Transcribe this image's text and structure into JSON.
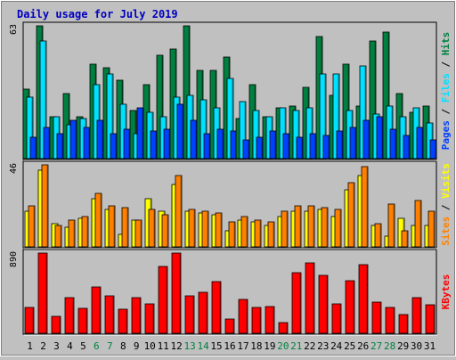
{
  "colors": {
    "background": "#c0c0c0",
    "title": "#0000c0",
    "panel_border": "#000000",
    "hits": "#008040",
    "files": "#00e0ff",
    "pages": "#0040ff",
    "visits": "#ffff00",
    "sites": "#ff8000",
    "kbytes": "#ff0000",
    "weekend_label": "#008040"
  },
  "chart_data": {
    "type": "bar",
    "title": "Daily usage for July 2019",
    "categories": [
      "1",
      "2",
      "3",
      "4",
      "5",
      "6",
      "7",
      "8",
      "9",
      "10",
      "11",
      "12",
      "13",
      "14",
      "15",
      "16",
      "17",
      "18",
      "19",
      "20",
      "21",
      "22",
      "23",
      "24",
      "25",
      "26",
      "27",
      "28",
      "29",
      "30",
      "31"
    ],
    "weekend_days": [
      "6",
      "7",
      "13",
      "14",
      "20",
      "21",
      "27",
      "28"
    ],
    "panels": [
      {
        "id": "hits-files-pages",
        "max_label": "63",
        "ylim": [
          0,
          63
        ],
        "side_label": [
          "Pages",
          "Files",
          "Hits"
        ],
        "series": [
          {
            "name": "Hits",
            "color_key": "hits",
            "values": [
              33,
              63,
              20,
              31,
              20,
              45,
              43,
              37,
              23,
              35,
              49,
              52,
              63,
              42,
              42,
              48,
              19,
              35,
              20,
              24,
              25,
              34,
              58,
              30,
              45,
              25,
              56,
              60,
              31,
              22,
              25
            ]
          },
          {
            "name": "Files",
            "color_key": "files",
            "values": [
              29,
              56,
              20,
              16,
              19,
              35,
              40,
              26,
              12,
              22,
              20,
              29,
              30,
              28,
              24,
              38,
              27,
              23,
              20,
              24,
              23,
              24,
              40,
              40,
              23,
              44,
              21,
              25,
              20,
              24,
              17
            ]
          },
          {
            "name": "Pages",
            "color_key": "pages",
            "values": [
              10,
              15,
              12,
              18,
              15,
              18,
              12,
              14,
              24,
              13,
              14,
              26,
              18,
              12,
              14,
              13,
              9,
              10,
              13,
              12,
              10,
              12,
              11,
              13,
              15,
              18,
              20,
              14,
              11,
              15,
              9
            ]
          }
        ]
      },
      {
        "id": "visits-sites",
        "max_label": "46",
        "ylim": [
          0,
          46
        ],
        "side_label": [
          "Sites",
          "Visits"
        ],
        "series": [
          {
            "name": "Visits",
            "color_key": "visits",
            "values": [
              20,
              43,
              13,
              11,
              16,
              27,
              21,
              7,
              15,
              27,
              20,
              35,
              20,
              19,
              18,
              9,
              15,
              14,
              12,
              17,
              20,
              20,
              21,
              17,
              32,
              40,
              12,
              6,
              16,
              12,
              12
            ]
          },
          {
            "name": "Sites",
            "color_key": "sites",
            "values": [
              23,
              46,
              12,
              15,
              17,
              30,
              23,
              22,
              15,
              21,
              18,
              40,
              21,
              20,
              19,
              14,
              17,
              15,
              14,
              20,
              23,
              23,
              22,
              21,
              36,
              45,
              13,
              24,
              9,
              26,
              20
            ]
          }
        ]
      },
      {
        "id": "kbytes",
        "max_label": "890",
        "ylim": [
          0,
          890
        ],
        "side_label": [
          "KBytes"
        ],
        "series": [
          {
            "name": "KBytes",
            "color_key": "kbytes",
            "values": [
              290,
              890,
              190,
              400,
              280,
              510,
              420,
              270,
              400,
              330,
              740,
              890,
              420,
              450,
              570,
              160,
              380,
              290,
              300,
              120,
              670,
              780,
              640,
              330,
              580,
              760,
              350,
              290,
              210,
              400,
              320
            ]
          }
        ]
      }
    ]
  }
}
